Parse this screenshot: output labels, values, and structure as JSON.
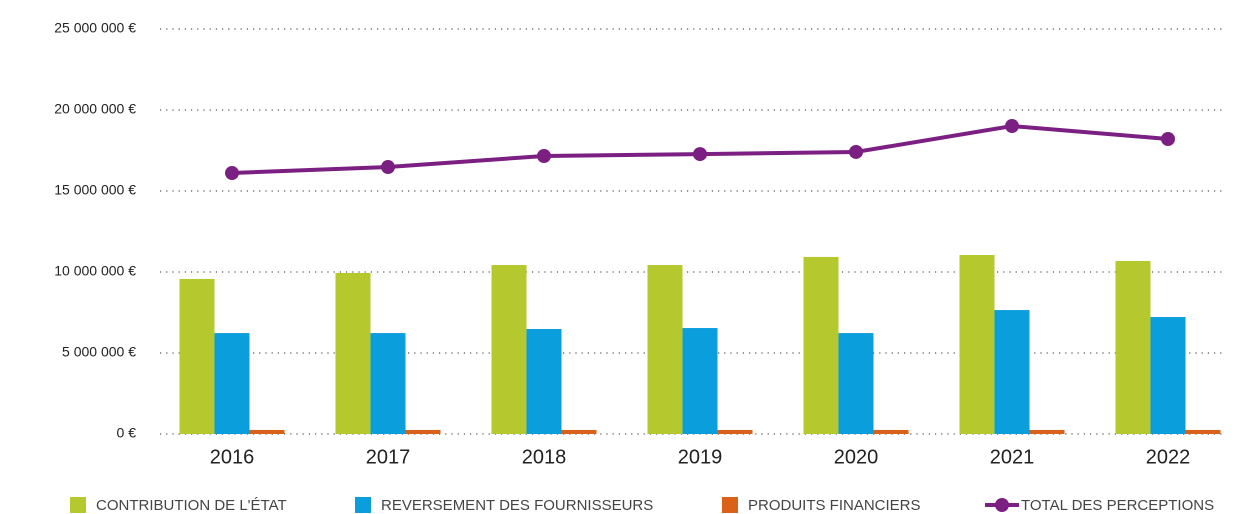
{
  "chart_data": {
    "type": "bar-line",
    "categories": [
      "2016",
      "2017",
      "2018",
      "2019",
      "2020",
      "2021",
      "2022"
    ],
    "series": [
      {
        "name": "CONTRIBUTION DE L'ÉTAT",
        "color": "#b5c92f",
        "type": "bar",
        "values": [
          9570000,
          9940000,
          10430000,
          10430000,
          10930000,
          11050000,
          10680000
        ]
      },
      {
        "name": "REVERSEMENT DES FOURNISSEURS",
        "color": "#0a9edc",
        "type": "bar",
        "values": [
          6230000,
          6230000,
          6480000,
          6540000,
          6230000,
          7650000,
          7220000
        ]
      },
      {
        "name": "PRODUITS FINANCIERS",
        "color": "#d9611a",
        "type": "bar",
        "values": [
          250000,
          250000,
          250000,
          250000,
          250000,
          250000,
          250000
        ]
      },
      {
        "name": "TOTAL DES PERCEPTIONS",
        "color": "#7b1f82",
        "type": "line",
        "values": [
          16110000,
          16480000,
          17160000,
          17280000,
          17410000,
          19010000,
          18210000
        ]
      }
    ],
    "ylim": [
      0,
      25000000
    ],
    "yticks": [
      {
        "value": 0,
        "label": "0 €"
      },
      {
        "value": 5000000,
        "label": "5 000 000 €"
      },
      {
        "value": 10000000,
        "label": "10 000 000 €"
      },
      {
        "value": 15000000,
        "label": "15 000 000 €"
      },
      {
        "value": 20000000,
        "label": "20 000 000 €"
      },
      {
        "value": 25000000,
        "label": "25 000 000 €"
      }
    ],
    "grid": true,
    "legend": "bottom"
  }
}
